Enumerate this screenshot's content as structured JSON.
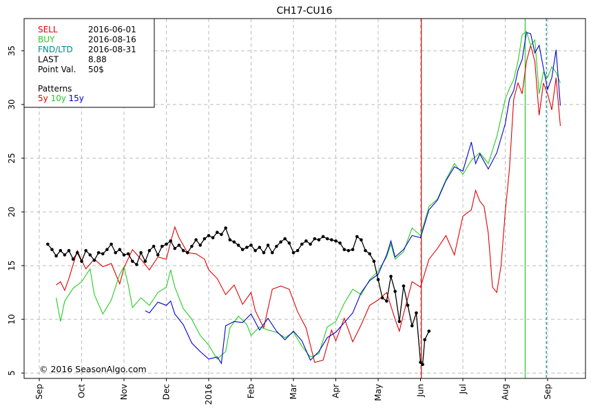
{
  "chart_data": {
    "type": "line",
    "title": "CH17-CU16",
    "ylim": [
      4.5,
      38
    ],
    "y_ticks": [
      5,
      10,
      15,
      20,
      25,
      30,
      35
    ],
    "x_ticks": [
      "Sep",
      "Oct",
      "Nov",
      "Dec",
      "2016",
      "Feb",
      "Mar",
      "Apr",
      "May",
      "Jun",
      "Jul",
      "Aug",
      "Sep"
    ],
    "grid": true,
    "info": [
      {
        "label": "SELL",
        "value": "2016-06-01",
        "color": "#dd0000"
      },
      {
        "label": "BUY",
        "value": "2016-08-16",
        "color": "#22cc22"
      },
      {
        "label": "FND/LTD",
        "value": "2016-08-31",
        "color": "#008888"
      },
      {
        "label": "LAST",
        "value": "8.88",
        "color": "#000000"
      },
      {
        "label": "Point Val.",
        "value": "50$",
        "color": "#000000"
      }
    ],
    "patterns_label": "Patterns",
    "pattern_labels": [
      {
        "text": "5y",
        "color": "#dd0000"
      },
      {
        "text": "10y",
        "color": "#22cc22"
      },
      {
        "text": "15y",
        "color": "#0000cc"
      }
    ],
    "vlines": [
      {
        "x": 9.02,
        "color": "#dd0000",
        "dash": false
      },
      {
        "x": 11.47,
        "color": "#22cc22",
        "dash": false
      },
      {
        "x": 11.97,
        "color": "#008888",
        "dash": true
      }
    ],
    "series": [
      {
        "name": "5y",
        "color": "#dd0000",
        "points": [
          [
            0.4,
            13.2
          ],
          [
            0.5,
            13.5
          ],
          [
            0.6,
            12.7
          ],
          [
            0.7,
            13.8
          ],
          [
            0.9,
            16.4
          ],
          [
            1.0,
            15.5
          ],
          [
            1.1,
            14.7
          ],
          [
            1.3,
            15.6
          ],
          [
            1.5,
            14.9
          ],
          [
            1.7,
            15.2
          ],
          [
            1.9,
            13.3
          ],
          [
            2.0,
            14.8
          ],
          [
            2.2,
            16.5
          ],
          [
            2.4,
            15.6
          ],
          [
            2.6,
            14.6
          ],
          [
            2.8,
            15.8
          ],
          [
            3.0,
            15.6
          ],
          [
            3.1,
            17.2
          ],
          [
            3.2,
            18.6
          ],
          [
            3.3,
            17.6
          ],
          [
            3.5,
            16.2
          ],
          [
            3.7,
            16.1
          ],
          [
            3.9,
            15.6
          ],
          [
            4.0,
            14.6
          ],
          [
            4.2,
            13.8
          ],
          [
            4.4,
            12.3
          ],
          [
            4.6,
            13.2
          ],
          [
            4.8,
            11.4
          ],
          [
            5.0,
            12.5
          ],
          [
            5.1,
            10.8
          ],
          [
            5.3,
            9.2
          ],
          [
            5.5,
            12.8
          ],
          [
            5.7,
            13.1
          ],
          [
            5.9,
            12.8
          ],
          [
            6.1,
            10.7
          ],
          [
            6.3,
            9.2
          ],
          [
            6.5,
            6.0
          ],
          [
            6.7,
            6.2
          ],
          [
            6.9,
            9.0
          ],
          [
            7.0,
            8.0
          ],
          [
            7.2,
            10.1
          ],
          [
            7.4,
            7.9
          ],
          [
            7.6,
            9.5
          ],
          [
            7.8,
            11.3
          ],
          [
            8.0,
            11.8
          ],
          [
            8.2,
            12.5
          ],
          [
            8.4,
            10.0
          ],
          [
            8.5,
            8.9
          ],
          [
            8.6,
            10.5
          ],
          [
            8.8,
            13.5
          ],
          [
            9.0,
            13.0
          ],
          [
            9.2,
            15.6
          ],
          [
            9.4,
            16.6
          ],
          [
            9.6,
            17.8
          ],
          [
            9.8,
            16.0
          ],
          [
            10.0,
            19.6
          ],
          [
            10.2,
            20.2
          ],
          [
            10.3,
            22.0
          ],
          [
            10.4,
            21.0
          ],
          [
            10.5,
            20.5
          ],
          [
            10.6,
            18.0
          ],
          [
            10.7,
            13.0
          ],
          [
            10.8,
            12.5
          ],
          [
            10.9,
            15.0
          ],
          [
            11.0,
            20.0
          ],
          [
            11.1,
            24.0
          ],
          [
            11.2,
            30.5
          ],
          [
            11.3,
            32.0
          ],
          [
            11.4,
            31.0
          ],
          [
            11.5,
            34.0
          ],
          [
            11.6,
            35.5
          ],
          [
            11.7,
            34.0
          ],
          [
            11.8,
            29.0
          ],
          [
            11.9,
            32.0
          ],
          [
            12.0,
            31.0
          ],
          [
            12.1,
            29.5
          ],
          [
            12.2,
            32.5
          ],
          [
            12.3,
            28.0
          ]
        ]
      },
      {
        "name": "10y",
        "color": "#22cc22",
        "points": [
          [
            0.4,
            12.0
          ],
          [
            0.5,
            9.8
          ],
          [
            0.6,
            11.7
          ],
          [
            0.8,
            12.9
          ],
          [
            1.0,
            13.5
          ],
          [
            1.2,
            14.7
          ],
          [
            1.3,
            12.3
          ],
          [
            1.5,
            10.5
          ],
          [
            1.7,
            11.8
          ],
          [
            1.9,
            14.2
          ],
          [
            2.0,
            14.9
          ],
          [
            2.1,
            13.2
          ],
          [
            2.2,
            11.1
          ],
          [
            2.4,
            12.0
          ],
          [
            2.6,
            11.3
          ],
          [
            2.8,
            12.5
          ],
          [
            3.0,
            13.0
          ],
          [
            3.1,
            14.6
          ],
          [
            3.2,
            13.0
          ],
          [
            3.4,
            11.0
          ],
          [
            3.6,
            10.0
          ],
          [
            3.8,
            8.5
          ],
          [
            4.0,
            7.6
          ],
          [
            4.2,
            6.3
          ],
          [
            4.4,
            7.0
          ],
          [
            4.5,
            9.2
          ],
          [
            4.7,
            10.3
          ],
          [
            4.9,
            9.5
          ],
          [
            5.0,
            8.5
          ],
          [
            5.2,
            9.3
          ],
          [
            5.4,
            9.0
          ],
          [
            5.6,
            8.8
          ],
          [
            5.8,
            8.3
          ],
          [
            6.0,
            8.8
          ],
          [
            6.2,
            7.5
          ],
          [
            6.4,
            6.5
          ],
          [
            6.6,
            6.8
          ],
          [
            6.8,
            9.3
          ],
          [
            7.0,
            9.8
          ],
          [
            7.2,
            11.5
          ],
          [
            7.4,
            12.8
          ],
          [
            7.6,
            12.3
          ],
          [
            7.8,
            13.7
          ],
          [
            8.0,
            14.5
          ],
          [
            8.2,
            15.8
          ],
          [
            8.3,
            17.0
          ],
          [
            8.4,
            15.6
          ],
          [
            8.6,
            16.3
          ],
          [
            8.8,
            18.5
          ],
          [
            9.0,
            17.8
          ],
          [
            9.2,
            20.5
          ],
          [
            9.4,
            21.2
          ],
          [
            9.6,
            23.0
          ],
          [
            9.8,
            24.5
          ],
          [
            10.0,
            23.5
          ],
          [
            10.2,
            24.8
          ],
          [
            10.4,
            25.5
          ],
          [
            10.6,
            24.5
          ],
          [
            10.8,
            27.0
          ],
          [
            11.0,
            30.5
          ],
          [
            11.1,
            31.5
          ],
          [
            11.2,
            32.3
          ],
          [
            11.3,
            34.0
          ],
          [
            11.4,
            36.5
          ],
          [
            11.5,
            36.8
          ],
          [
            11.6,
            35.5
          ],
          [
            11.7,
            36.0
          ],
          [
            11.8,
            31.0
          ],
          [
            11.9,
            33.0
          ],
          [
            12.0,
            32.5
          ],
          [
            12.1,
            33.5
          ],
          [
            12.2,
            33.0
          ],
          [
            12.3,
            32.0
          ]
        ]
      },
      {
        "name": "15y",
        "color": "#0000cc",
        "points": [
          [
            2.5,
            10.8
          ],
          [
            2.6,
            10.6
          ],
          [
            2.8,
            11.6
          ],
          [
            3.0,
            11.3
          ],
          [
            3.1,
            11.7
          ],
          [
            3.2,
            10.5
          ],
          [
            3.4,
            9.5
          ],
          [
            3.6,
            7.8
          ],
          [
            3.8,
            7.0
          ],
          [
            4.0,
            6.3
          ],
          [
            4.2,
            6.5
          ],
          [
            4.3,
            5.9
          ],
          [
            4.4,
            9.4
          ],
          [
            4.6,
            9.8
          ],
          [
            4.8,
            9.7
          ],
          [
            5.0,
            10.5
          ],
          [
            5.2,
            9.0
          ],
          [
            5.4,
            10.1
          ],
          [
            5.6,
            8.9
          ],
          [
            5.8,
            8.1
          ],
          [
            6.0,
            8.9
          ],
          [
            6.2,
            8.0
          ],
          [
            6.4,
            6.2
          ],
          [
            6.6,
            7.0
          ],
          [
            6.8,
            8.3
          ],
          [
            7.0,
            8.8
          ],
          [
            7.2,
            9.7
          ],
          [
            7.4,
            10.6
          ],
          [
            7.6,
            12.5
          ],
          [
            7.8,
            13.6
          ],
          [
            8.0,
            14.2
          ],
          [
            8.2,
            16.0
          ],
          [
            8.3,
            17.3
          ],
          [
            8.4,
            15.8
          ],
          [
            8.6,
            16.5
          ],
          [
            8.8,
            17.8
          ],
          [
            9.0,
            17.6
          ],
          [
            9.2,
            20.2
          ],
          [
            9.4,
            21.1
          ],
          [
            9.6,
            22.9
          ],
          [
            9.8,
            24.2
          ],
          [
            10.0,
            23.8
          ],
          [
            10.2,
            26.5
          ],
          [
            10.3,
            24.5
          ],
          [
            10.4,
            25.4
          ],
          [
            10.6,
            24.0
          ],
          [
            10.8,
            25.5
          ],
          [
            11.0,
            28.2
          ],
          [
            11.1,
            30.5
          ],
          [
            11.2,
            31.3
          ],
          [
            11.3,
            33.2
          ],
          [
            11.4,
            34.2
          ],
          [
            11.5,
            36.7
          ],
          [
            11.6,
            36.6
          ],
          [
            11.7,
            34.8
          ],
          [
            11.8,
            35.5
          ],
          [
            11.9,
            33.4
          ],
          [
            12.0,
            31.4
          ],
          [
            12.1,
            32.5
          ],
          [
            12.2,
            35.1
          ],
          [
            12.3,
            29.9
          ]
        ]
      },
      {
        "name": "CH17-CU16",
        "color": "#000000",
        "points": [
          [
            0.2,
            17.0
          ],
          [
            0.3,
            16.5
          ],
          [
            0.4,
            15.9
          ],
          [
            0.5,
            16.4
          ],
          [
            0.6,
            16.0
          ],
          [
            0.7,
            16.4
          ],
          [
            0.8,
            15.6
          ],
          [
            0.9,
            16.2
          ],
          [
            1.0,
            15.4
          ],
          [
            1.1,
            16.4
          ],
          [
            1.2,
            16.0
          ],
          [
            1.3,
            15.5
          ],
          [
            1.4,
            16.2
          ],
          [
            1.5,
            16.1
          ],
          [
            1.6,
            16.5
          ],
          [
            1.7,
            17.0
          ],
          [
            1.8,
            16.2
          ],
          [
            1.9,
            16.5
          ],
          [
            2.0,
            16.0
          ],
          [
            2.1,
            16.1
          ],
          [
            2.2,
            15.4
          ],
          [
            2.3,
            15.1
          ],
          [
            2.4,
            16.2
          ],
          [
            2.5,
            15.4
          ],
          [
            2.6,
            16.4
          ],
          [
            2.7,
            16.8
          ],
          [
            2.8,
            16.0
          ],
          [
            2.9,
            16.8
          ],
          [
            3.0,
            17.0
          ],
          [
            3.1,
            17.3
          ],
          [
            3.2,
            16.6
          ],
          [
            3.3,
            16.9
          ],
          [
            3.4,
            16.4
          ],
          [
            3.5,
            16.2
          ],
          [
            3.6,
            16.8
          ],
          [
            3.7,
            17.4
          ],
          [
            3.8,
            16.9
          ],
          [
            3.9,
            17.5
          ],
          [
            4.0,
            17.8
          ],
          [
            4.1,
            17.6
          ],
          [
            4.2,
            18.1
          ],
          [
            4.3,
            17.9
          ],
          [
            4.4,
            18.5
          ],
          [
            4.5,
            17.4
          ],
          [
            4.6,
            17.2
          ],
          [
            4.7,
            16.9
          ],
          [
            4.8,
            16.5
          ],
          [
            4.9,
            16.7
          ],
          [
            5.0,
            16.9
          ],
          [
            5.1,
            16.4
          ],
          [
            5.2,
            16.7
          ],
          [
            5.3,
            16.2
          ],
          [
            5.4,
            16.9
          ],
          [
            5.5,
            16.2
          ],
          [
            5.6,
            16.8
          ],
          [
            5.7,
            17.2
          ],
          [
            5.8,
            17.5
          ],
          [
            5.9,
            17.1
          ],
          [
            6.0,
            16.2
          ],
          [
            6.1,
            16.4
          ],
          [
            6.2,
            17.0
          ],
          [
            6.3,
            17.3
          ],
          [
            6.4,
            17.0
          ],
          [
            6.5,
            17.5
          ],
          [
            6.6,
            17.4
          ],
          [
            6.7,
            17.7
          ],
          [
            6.8,
            17.5
          ],
          [
            6.9,
            17.4
          ],
          [
            7.0,
            17.3
          ],
          [
            7.1,
            17.1
          ],
          [
            7.2,
            16.5
          ],
          [
            7.3,
            16.4
          ],
          [
            7.4,
            16.5
          ],
          [
            7.5,
            17.7
          ],
          [
            7.6,
            17.4
          ],
          [
            7.7,
            16.4
          ],
          [
            7.8,
            16.1
          ],
          [
            7.9,
            15.4
          ],
          [
            8.0,
            13.7
          ],
          [
            8.1,
            12.0
          ],
          [
            8.2,
            11.7
          ],
          [
            8.3,
            14.0
          ],
          [
            8.4,
            12.6
          ],
          [
            8.5,
            9.8
          ],
          [
            8.6,
            13.1
          ],
          [
            8.7,
            11.3
          ],
          [
            8.8,
            9.4
          ],
          [
            8.9,
            10.6
          ],
          [
            9.0,
            6.0
          ],
          [
            9.05,
            5.8
          ],
          [
            9.1,
            8.1
          ],
          [
            9.2,
            8.9
          ]
        ]
      }
    ],
    "copyright": "© 2016 SeasonAlgo.com"
  }
}
